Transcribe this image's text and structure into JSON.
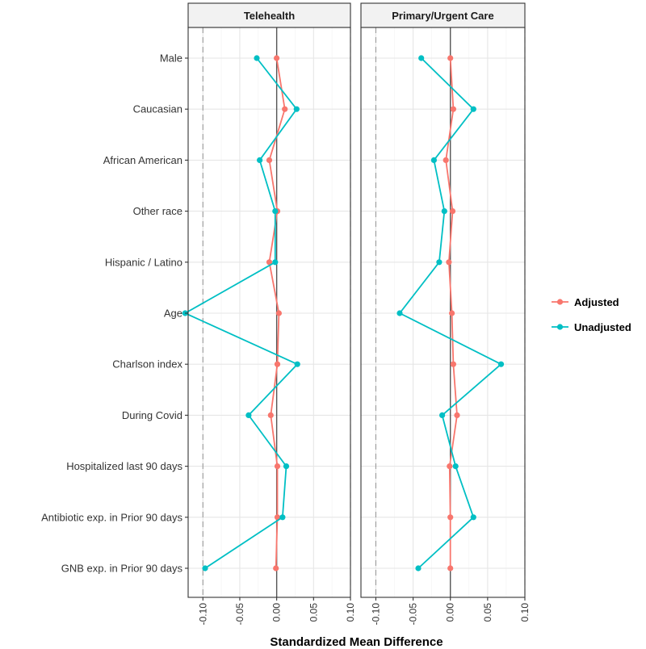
{
  "chart_data": {
    "type": "line",
    "xlabel": "Standardized Mean Difference",
    "xlim": [
      -0.12,
      0.1
    ],
    "x_ticks": [
      -0.1,
      -0.05,
      0.0,
      0.05,
      0.1
    ],
    "x_tick_labels": [
      "-0.10",
      "-0.05",
      "0.00",
      "0.05",
      "0.10"
    ],
    "threshold_lines": [
      -0.1,
      0.1
    ],
    "categories": [
      "Male",
      "Caucasian",
      "African American",
      "Other race",
      "Hispanic / Latino",
      "Age",
      "Charlson index",
      "During Covid",
      "Hospitalized last 90 days",
      "Antibiotic exp. in Prior 90 days",
      "GNB exp. in Prior 90 days"
    ],
    "legend": {
      "position": "right",
      "entries": [
        "Adjusted",
        "Unadjusted"
      ]
    },
    "grid": true,
    "panels": [
      {
        "title": "Telehealth",
        "series": [
          {
            "name": "Adjusted",
            "color": "#F8766D",
            "values": [
              0.0,
              0.011,
              -0.01,
              0.001,
              -0.01,
              0.003,
              0.001,
              -0.008,
              0.001,
              0.001,
              -0.001
            ]
          },
          {
            "name": "Unadjusted",
            "color": "#00BFC4",
            "values": [
              -0.027,
              0.027,
              -0.023,
              -0.002,
              -0.002,
              -0.124,
              0.028,
              -0.038,
              0.013,
              0.008,
              -0.097
            ]
          }
        ]
      },
      {
        "title": "Primary/Urgent Care",
        "series": [
          {
            "name": "Adjusted",
            "color": "#F8766D",
            "values": [
              0.0,
              0.004,
              -0.006,
              0.003,
              -0.002,
              0.002,
              0.004,
              0.009,
              -0.001,
              0.0,
              0.0
            ]
          },
          {
            "name": "Unadjusted",
            "color": "#00BFC4",
            "values": [
              -0.039,
              0.031,
              -0.022,
              -0.008,
              -0.015,
              -0.068,
              0.068,
              -0.011,
              0.007,
              0.031,
              -0.043
            ]
          }
        ]
      }
    ]
  }
}
